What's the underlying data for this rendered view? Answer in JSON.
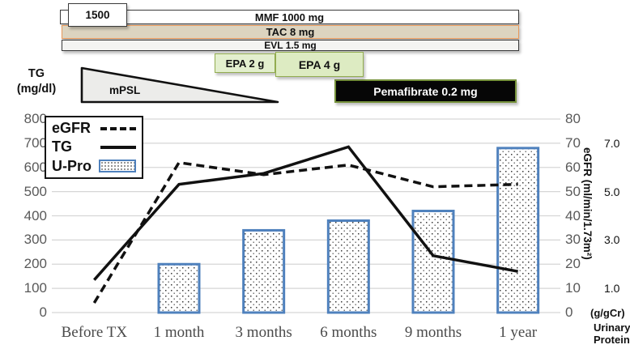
{
  "timeline": {
    "dose_box": "1500",
    "bars": [
      {
        "id": "mmf",
        "label": "MMF 1000 mg",
        "fill": "#ffffff",
        "border": "#3a3a3a"
      },
      {
        "id": "tac",
        "label": "TAC 8 mg",
        "fill": "#dcd4c0",
        "border": "#e8995a"
      },
      {
        "id": "evl",
        "label": "EVL 1.5 mg",
        "fill": "#f4f4f2",
        "border": "#3a3a3a"
      }
    ],
    "epa2": {
      "label": "EPA 2 g",
      "fill": "#e3efce",
      "border": "#93ad50"
    },
    "epa4": {
      "label": "EPA 4 g",
      "fill": "#ddebc2",
      "border": "#93ad50"
    },
    "mpsl": {
      "label": "mPSL",
      "fill": "#ececea",
      "border": "#111111"
    },
    "pema": {
      "label": "Pemafibrate 0.2 mg",
      "fill": "#060606",
      "border": "#77933c",
      "text_color": "#ffffff"
    }
  },
  "left_axis": {
    "title_line1": "TG",
    "title_line2": "(mg/dl)",
    "ticks": [
      "800",
      "700",
      "600",
      "500",
      "400",
      "300",
      "200",
      "100",
      "0"
    ]
  },
  "right_axis": {
    "egfr_ticks": [
      "80",
      "70",
      "60",
      "50",
      "40",
      "30",
      "20",
      "10",
      "0"
    ],
    "egfr_title": "eGFR (ml/min/1.73m²)",
    "upro_ticks": [
      "7.0",
      "5.0",
      "3.0",
      "1.0"
    ],
    "upro_unit": "(g/gCr)",
    "upro_title_line1": "Urinary",
    "upro_title_line2": "Protein"
  },
  "legend": [
    {
      "label": "eGFR",
      "swatch": "dashed-line"
    },
    {
      "label": "TG",
      "swatch": "solid-line"
    },
    {
      "label": "U-Pro",
      "swatch": "dotted-bar"
    }
  ],
  "colors": {
    "grid": "#d6d6d6",
    "line": "#111111",
    "bar_border": "#4f81bd",
    "bar_dot": "#3a3a3a",
    "tick_text": "#595959"
  },
  "chart_data": {
    "type": "combo line+bar",
    "categories": [
      "Before TX",
      "1 month",
      "3 months",
      "6 months",
      "9 months",
      "1 year"
    ],
    "series": [
      {
        "name": "eGFR",
        "type": "line",
        "style": "dashed",
        "axis": "right (ml/min/1.73m2)",
        "values": [
          4,
          62,
          57,
          61,
          52,
          53
        ],
        "plot_values": [
          40,
          620,
          570,
          610,
          520,
          530
        ]
      },
      {
        "name": "TG",
        "type": "line",
        "style": "solid",
        "axis": "left (mg/dl)",
        "values": [
          135,
          530,
          575,
          685,
          235,
          170
        ],
        "plot_values": [
          135,
          530,
          575,
          685,
          235,
          170
        ]
      },
      {
        "name": "U-Pro",
        "type": "bar",
        "axis": "right (g/gCr)",
        "values": [
          null,
          2.0,
          3.4,
          3.8,
          4.2,
          6.8
        ],
        "plot_values": [
          null,
          200,
          340,
          380,
          420,
          680
        ]
      }
    ],
    "left_ylim": [
      0,
      800
    ],
    "right_egfr_ylim": [
      0,
      80
    ],
    "right_upro_ylim": [
      0,
      8
    ],
    "gridlines": true,
    "legend_position": "top-left"
  }
}
